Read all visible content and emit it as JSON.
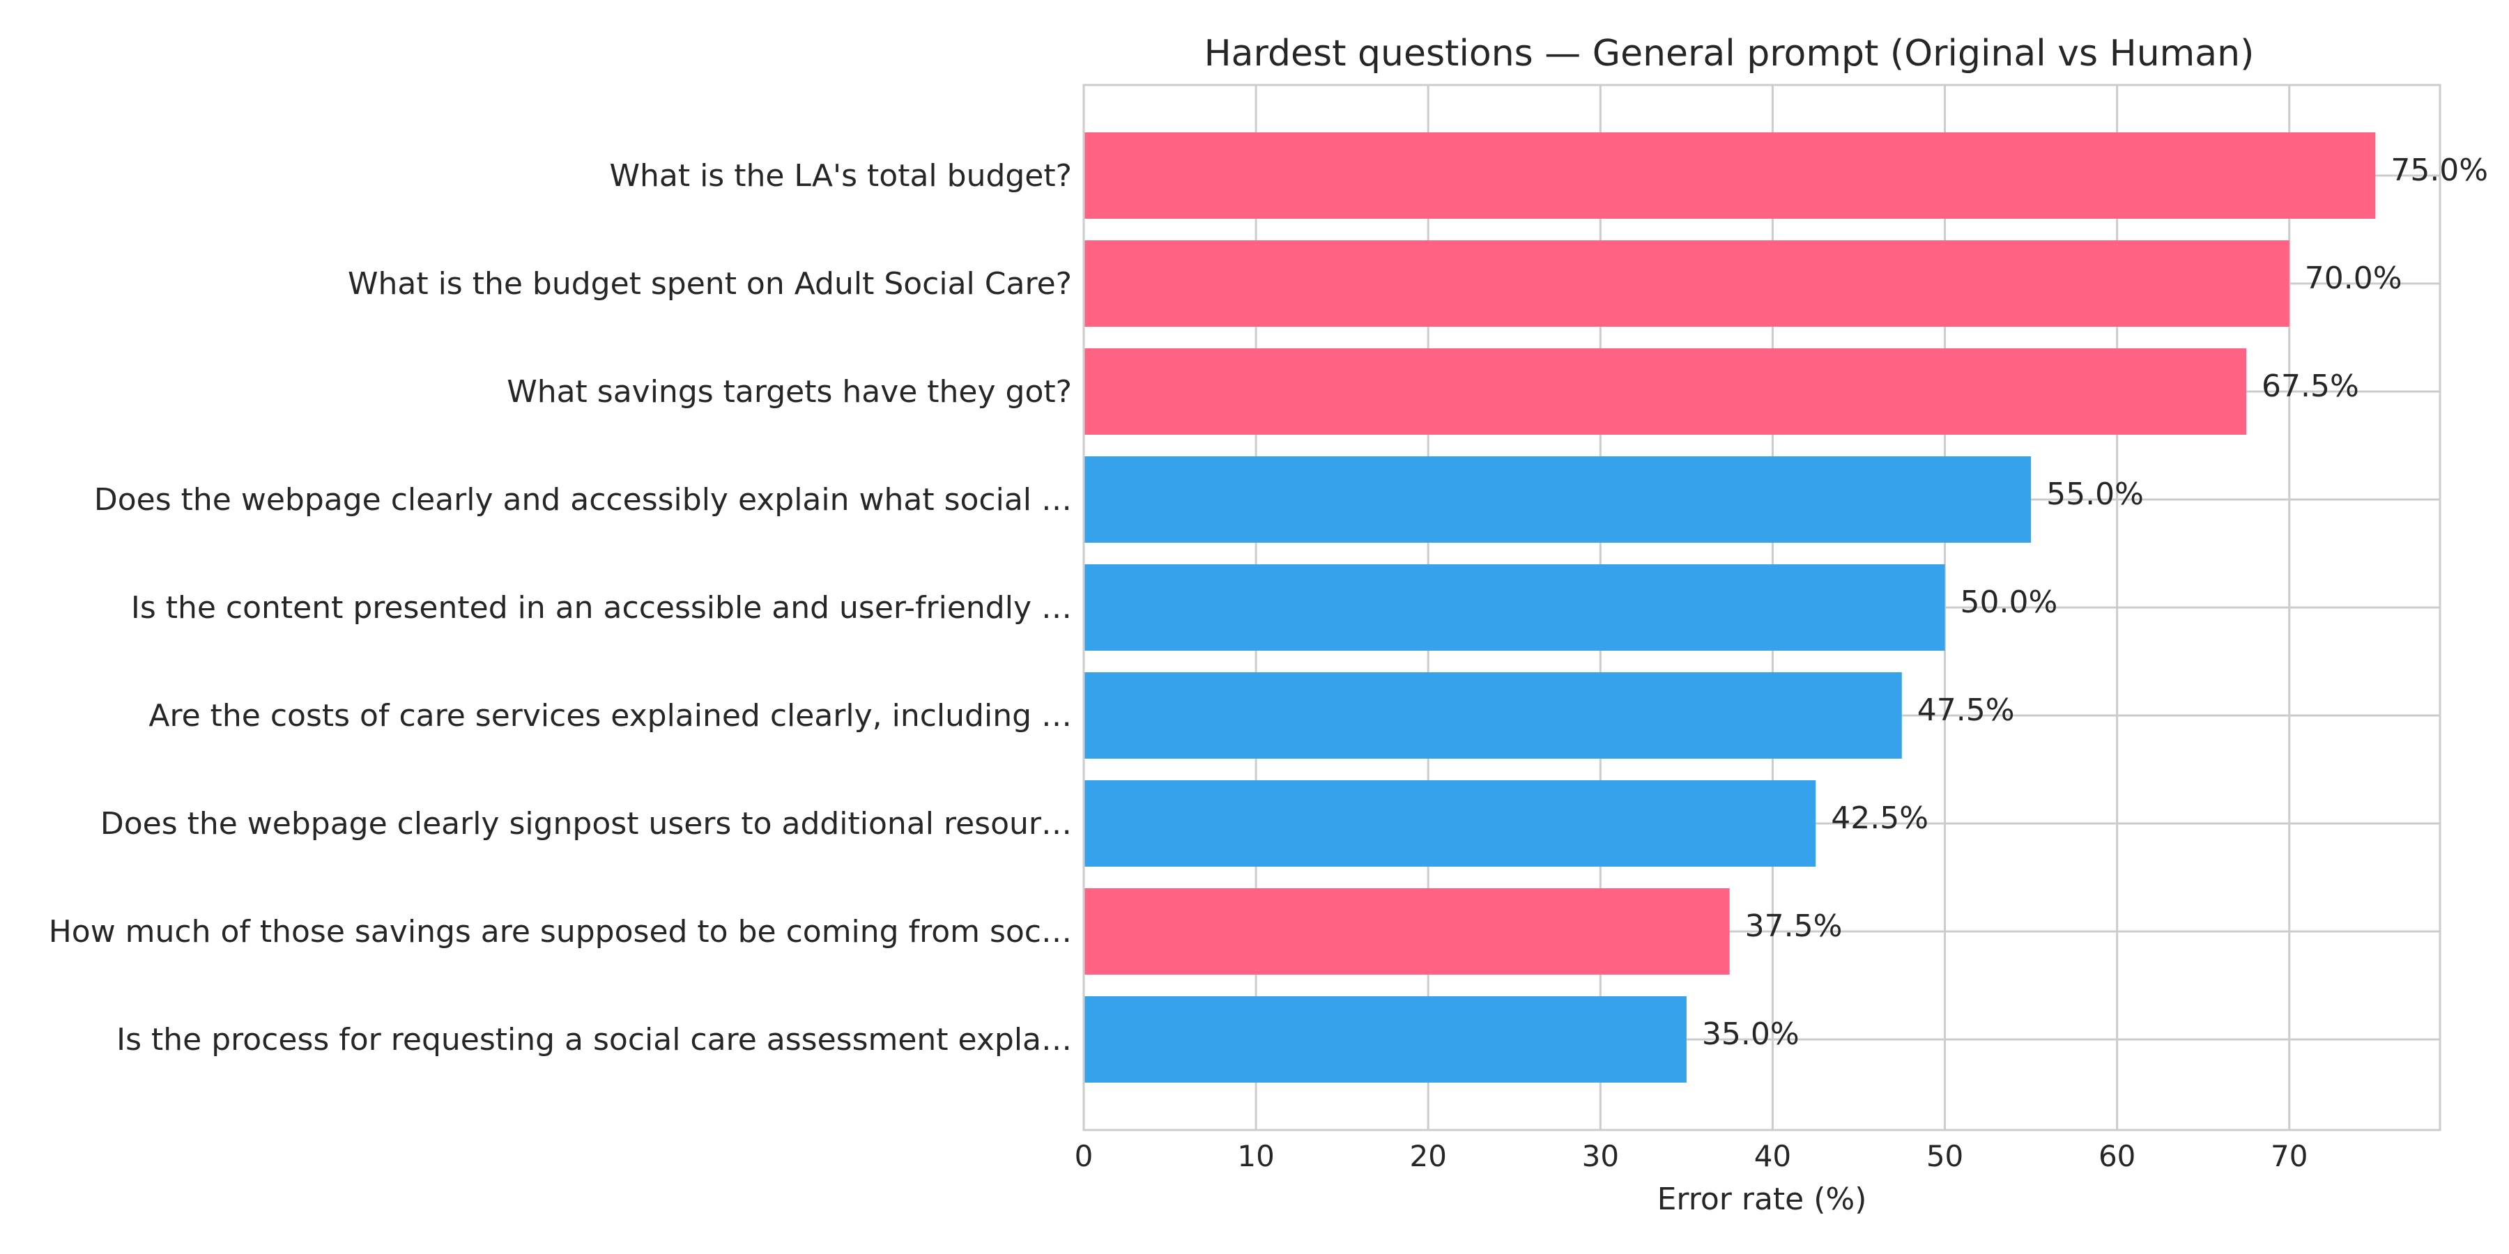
{
  "chart_data": {
    "type": "bar",
    "orientation": "horizontal",
    "title": "Hardest questions — General prompt (Original vs Human)",
    "xlabel": "Error rate (%)",
    "ylabel": "",
    "xlim": [
      0,
      78.75
    ],
    "xticks": [
      0,
      10,
      20,
      30,
      40,
      50,
      60,
      70
    ],
    "grid": true,
    "categories": [
      "What is the LA's total budget?",
      "What is the budget spent on Adult Social Care?",
      "What savings targets have they got?",
      "Does the webpage clearly and accessibly explain what social …",
      "Is the content presented in an accessible and user-friendly …",
      "Are the costs of care services explained clearly, including …",
      "Does the webpage clearly signpost users to additional resour…",
      "How much of those savings are supposed to be coming from soc…",
      "Is the process for requesting a social care assessment expla…"
    ],
    "values": [
      75.0,
      70.0,
      67.5,
      55.0,
      50.0,
      47.5,
      42.5,
      37.5,
      35.0
    ],
    "data_labels": [
      "75.0%",
      "70.0%",
      "67.5%",
      "55.0%",
      "50.0%",
      "47.5%",
      "42.5%",
      "37.5%",
      "35.0%"
    ],
    "bar_colors": [
      "#ff6383",
      "#ff6383",
      "#ff6383",
      "#36a2eb",
      "#36a2eb",
      "#36a2eb",
      "#36a2eb",
      "#ff6383",
      "#36a2eb"
    ]
  }
}
